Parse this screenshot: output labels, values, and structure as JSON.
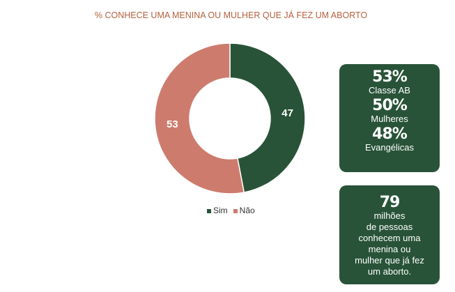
{
  "chart_data": {
    "type": "pie",
    "title": "% CONHECE UMA MENINA OU MULHER QUE JÁ FEZ UM ABORTO",
    "categories": [
      "Sim",
      "Não"
    ],
    "values": [
      47,
      53
    ],
    "colors": [
      "#285338",
      "#cd7b6d"
    ],
    "legend": "bottom"
  },
  "stats": [
    {
      "value": "53%",
      "label": "Classe AB"
    },
    {
      "value": "50%",
      "label": "Mulheres"
    },
    {
      "value": "48%",
      "label": "Evangélicas"
    }
  ],
  "highlight": {
    "value": "79",
    "lines": [
      "milhões",
      "de pessoas",
      "conhecem uma",
      "menina ou",
      "mulher que já fez",
      "um aborto."
    ]
  }
}
